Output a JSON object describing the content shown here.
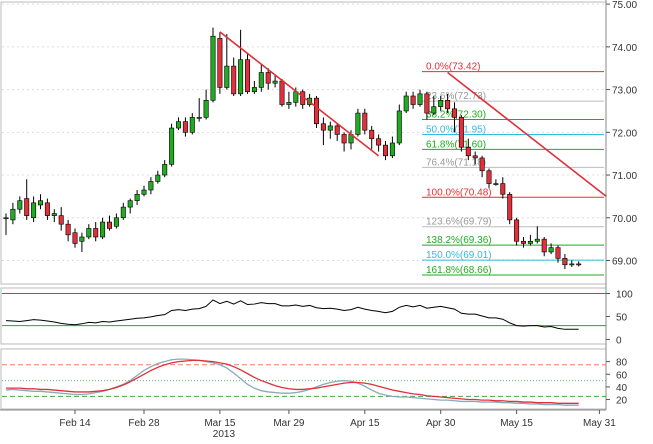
{
  "chart_data": [
    {
      "type": "candlestick",
      "panel": "price",
      "y_ticks": [
        "75.00",
        "74.00",
        "73.00",
        "72.00",
        "71.00",
        "70.00",
        "69.00"
      ],
      "ylim": [
        68.45,
        75.05
      ],
      "candles": [
        [
          70.0,
          70.0,
          70.1,
          69.6
        ],
        [
          69.95,
          70.2,
          70.35,
          69.85
        ],
        [
          70.2,
          70.4,
          70.5,
          70.1
        ],
        [
          70.45,
          70.05,
          70.9,
          69.95
        ],
        [
          70.0,
          70.35,
          70.5,
          69.9
        ],
        [
          70.3,
          70.4,
          70.55,
          70.2
        ],
        [
          70.35,
          70.05,
          70.45,
          69.95
        ],
        [
          70.05,
          70.1,
          70.2,
          69.9
        ],
        [
          70.05,
          69.85,
          70.25,
          69.7
        ],
        [
          69.85,
          69.6,
          69.95,
          69.45
        ],
        [
          69.65,
          69.4,
          69.75,
          69.3
        ],
        [
          69.45,
          69.55,
          69.65,
          69.2
        ],
        [
          69.55,
          69.75,
          69.85,
          69.5
        ],
        [
          69.75,
          69.55,
          69.9,
          69.45
        ],
        [
          69.55,
          69.9,
          70.0,
          69.5
        ],
        [
          69.9,
          69.75,
          70.05,
          69.7
        ],
        [
          69.8,
          70.0,
          70.1,
          69.75
        ],
        [
          70.0,
          70.25,
          70.35,
          69.95
        ],
        [
          70.25,
          70.4,
          70.45,
          70.1
        ],
        [
          70.4,
          70.55,
          70.65,
          70.3
        ],
        [
          70.55,
          70.65,
          70.75,
          70.5
        ],
        [
          70.65,
          70.85,
          70.95,
          70.55
        ],
        [
          70.85,
          71.0,
          71.1,
          70.8
        ],
        [
          71.0,
          71.25,
          71.35,
          70.95
        ],
        [
          71.25,
          72.1,
          72.2,
          71.2
        ],
        [
          72.1,
          72.25,
          72.35,
          72.05
        ],
        [
          72.25,
          72.0,
          72.35,
          71.9
        ],
        [
          72.0,
          72.35,
          72.45,
          71.95
        ],
        [
          72.35,
          72.35,
          72.8,
          72.25
        ],
        [
          72.35,
          72.75,
          73.0,
          72.3
        ],
        [
          72.75,
          74.25,
          74.45,
          72.7
        ],
        [
          74.2,
          73.05,
          74.35,
          72.9
        ],
        [
          73.05,
          73.55,
          74.3,
          73.0
        ],
        [
          73.55,
          72.9,
          73.75,
          72.85
        ],
        [
          72.9,
          73.7,
          74.4,
          72.85
        ],
        [
          73.7,
          72.95,
          73.85,
          72.9
        ],
        [
          72.95,
          73.05,
          73.2,
          72.9
        ],
        [
          73.05,
          73.4,
          73.6,
          72.95
        ],
        [
          73.4,
          73.15,
          73.5,
          73.0
        ],
        [
          73.15,
          73.2,
          73.35,
          73.05
        ],
        [
          73.2,
          72.65,
          73.25,
          72.6
        ],
        [
          72.65,
          72.7,
          72.95,
          72.55
        ],
        [
          72.7,
          72.95,
          73.05,
          72.6
        ],
        [
          72.95,
          72.65,
          73.0,
          72.55
        ],
        [
          72.65,
          72.8,
          72.9,
          72.6
        ],
        [
          72.8,
          72.2,
          72.85,
          72.1
        ],
        [
          72.2,
          72.05,
          72.35,
          71.7
        ],
        [
          72.05,
          72.15,
          72.25,
          71.85
        ],
        [
          72.15,
          71.95,
          72.2,
          71.8
        ],
        [
          71.95,
          71.75,
          72.0,
          71.55
        ],
        [
          71.75,
          71.95,
          72.05,
          71.6
        ],
        [
          71.95,
          72.45,
          72.55,
          71.9
        ],
        [
          72.45,
          72.05,
          72.55,
          71.95
        ],
        [
          72.05,
          71.85,
          72.15,
          71.6
        ],
        [
          71.85,
          71.7,
          71.95,
          71.55
        ],
        [
          71.7,
          71.45,
          71.8,
          71.35
        ],
        [
          71.45,
          71.75,
          71.9,
          71.4
        ],
        [
          71.75,
          72.5,
          72.65,
          71.7
        ],
        [
          72.5,
          72.85,
          72.95,
          72.45
        ],
        [
          72.85,
          72.65,
          72.95,
          72.55
        ],
        [
          72.65,
          72.9,
          73.0,
          72.6
        ],
        [
          72.9,
          72.45,
          72.95,
          72.3
        ],
        [
          72.45,
          72.6,
          72.85,
          72.4
        ],
        [
          72.6,
          72.75,
          72.85,
          72.5
        ],
        [
          72.75,
          72.55,
          72.9,
          72.45
        ],
        [
          72.55,
          72.35,
          72.7,
          72.0
        ],
        [
          72.35,
          71.65,
          72.4,
          71.55
        ],
        [
          71.65,
          71.45,
          71.85,
          71.35
        ],
        [
          71.45,
          71.4,
          71.55,
          71.25
        ],
        [
          71.4,
          71.1,
          71.45,
          70.95
        ],
        [
          71.1,
          70.8,
          71.15,
          70.7
        ],
        [
          70.8,
          70.8,
          70.9,
          70.75
        ],
        [
          70.8,
          70.55,
          70.95,
          70.45
        ],
        [
          70.55,
          69.95,
          70.6,
          69.85
        ],
        [
          69.95,
          69.45,
          70.0,
          69.35
        ],
        [
          69.45,
          69.4,
          69.55,
          69.3
        ],
        [
          69.4,
          69.45,
          69.6,
          69.35
        ],
        [
          69.45,
          69.5,
          69.8,
          69.4
        ],
        [
          69.5,
          69.2,
          69.55,
          69.1
        ],
        [
          69.2,
          69.3,
          69.4,
          69.15
        ],
        [
          69.3,
          69.05,
          69.35,
          68.95
        ],
        [
          69.05,
          68.9,
          69.15,
          68.8
        ],
        [
          68.9,
          68.92,
          69.0,
          68.85
        ],
        [
          68.92,
          68.9,
          68.98,
          68.86
        ]
      ],
      "fib_levels": [
        {
          "label": "0.0%(73.42)",
          "price": 73.42,
          "color": "#e0303a",
          "text_color": "#e0303a"
        },
        {
          "label": "23.6%(72.73)",
          "price": 72.73,
          "color": "#bbbbbb",
          "text_color": "#999999"
        },
        {
          "label": "38.2%(72.30)",
          "price": 72.3,
          "color": "#22aa22",
          "text_color": "#22aa22"
        },
        {
          "label": "50.0%(71.95)",
          "price": 71.95,
          "color": "#33bbdd",
          "text_color": "#33bbdd"
        },
        {
          "label": "61.8%(71.60)",
          "price": 71.6,
          "color": "#22aa22",
          "text_color": "#22aa22"
        },
        {
          "label": "76.4%(71.18)",
          "price": 71.18,
          "color": "#bbbbbb",
          "text_color": "#999999"
        },
        {
          "label": "100.0%(70.48)",
          "price": 70.48,
          "color": "#e0303a",
          "text_color": "#e0303a"
        },
        {
          "label": "123.6%(69.79)",
          "price": 69.79,
          "color": "#bbbbbb",
          "text_color": "#999999"
        },
        {
          "label": "138.2%(69.36)",
          "price": 69.36,
          "color": "#22aa22",
          "text_color": "#22aa22"
        },
        {
          "label": "150.0%(69.01)",
          "price": 69.01,
          "color": "#33bbdd",
          "text_color": "#33bbdd"
        },
        {
          "label": "161.8%(68.66)",
          "price": 68.66,
          "color": "#22aa22",
          "text_color": "#22aa22"
        }
      ],
      "trendlines": [
        {
          "from": {
            "bar": 31,
            "price": 74.35
          },
          "to": {
            "bar": 54,
            "price": 71.45
          },
          "color": "#e0303a"
        },
        {
          "from": {
            "bar": 64,
            "price": 73.4
          },
          "to": {
            "bar": 87,
            "price": 70.5
          },
          "color": "#e0303a"
        }
      ],
      "colors": {
        "up": "#22aa22",
        "down": "#e0303a",
        "wick": "#000000"
      }
    },
    {
      "type": "line",
      "panel": "oscillator",
      "y_ticks": [
        "100",
        "50",
        "0"
      ],
      "ylim": [
        -10,
        112
      ],
      "hlines": [
        {
          "value": 100,
          "color": "#e0303a"
        },
        {
          "value": 30,
          "color": "#22aa22"
        }
      ],
      "series": [
        {
          "color": "#000000",
          "values": [
            41,
            40,
            39,
            41,
            43,
            42,
            40,
            38,
            35,
            33,
            32,
            34,
            37,
            36,
            39,
            38,
            40,
            42,
            44,
            46,
            47,
            49,
            52,
            54,
            63,
            65,
            63,
            66,
            67,
            72,
            86,
            78,
            83,
            77,
            84,
            76,
            77,
            80,
            78,
            78,
            73,
            73,
            75,
            72,
            74,
            69,
            67,
            68,
            66,
            63,
            65,
            70,
            66,
            63,
            61,
            58,
            61,
            70,
            74,
            71,
            74,
            68,
            70,
            72,
            69,
            66,
            57,
            55,
            55,
            51,
            47,
            47,
            44,
            36,
            30,
            29,
            30,
            30,
            27,
            28,
            24,
            22,
            22,
            22
          ]
        }
      ]
    },
    {
      "type": "line",
      "panel": "stochastic",
      "y_ticks": [
        "80",
        "60",
        "40",
        "20"
      ],
      "ylim": [
        5,
        100
      ],
      "hlines": [
        {
          "value": 75,
          "color": "#f08060",
          "style": "dashed"
        },
        {
          "value": 50,
          "color": "#66bb66",
          "style": "dotted"
        },
        {
          "value": 25,
          "color": "#44aa44",
          "style": "dashed"
        }
      ],
      "series": [
        {
          "color": "#88aabb",
          "values": [
            35,
            36,
            35,
            34,
            33,
            33,
            32,
            31,
            30,
            29,
            28,
            28,
            29,
            31,
            33,
            36,
            40,
            44,
            50,
            58,
            66,
            72,
            77,
            80,
            83,
            84,
            84,
            83,
            82,
            80,
            78,
            75,
            70,
            62,
            53,
            44,
            38,
            34,
            32,
            31,
            30,
            30,
            31,
            33,
            36,
            40,
            44,
            47,
            49,
            50,
            49,
            46,
            41,
            35,
            30,
            27,
            25,
            24,
            24,
            23,
            22,
            21,
            20,
            19,
            19,
            18,
            17,
            17,
            17,
            16,
            16,
            16,
            15,
            15,
            14,
            14,
            13,
            13,
            12,
            12,
            12,
            11,
            11,
            11
          ]
        },
        {
          "color": "#e0303a",
          "values": [
            38,
            38,
            38,
            37,
            37,
            36,
            36,
            35,
            34,
            33,
            32,
            32,
            32,
            33,
            34,
            36,
            39,
            43,
            48,
            54,
            60,
            66,
            71,
            75,
            78,
            80,
            81,
            82,
            82,
            81,
            80,
            78,
            76,
            72,
            67,
            61,
            55,
            50,
            46,
            42,
            39,
            37,
            36,
            36,
            37,
            38,
            40,
            42,
            44,
            46,
            47,
            47,
            46,
            44,
            41,
            38,
            35,
            33,
            31,
            29,
            28,
            26,
            25,
            24,
            23,
            22,
            21,
            20,
            20,
            19,
            19,
            18,
            18,
            17,
            17,
            16,
            16,
            15,
            15,
            15,
            14,
            14,
            14,
            14
          ]
        }
      ]
    }
  ],
  "x_axis": {
    "labels": [
      {
        "text": "Feb 14",
        "bar": 10
      },
      {
        "text": "Feb 28",
        "bar": 20
      },
      {
        "text": "Mar 15",
        "bar": 31
      },
      {
        "text": "Mar 29",
        "bar": 41
      },
      {
        "text": "Apr 15",
        "bar": 52
      },
      {
        "text": "Apr 30",
        "bar": 63
      },
      {
        "text": "May 15",
        "bar": 74
      },
      {
        "text": "May 31",
        "bar": 86
      }
    ],
    "year": "2013"
  }
}
